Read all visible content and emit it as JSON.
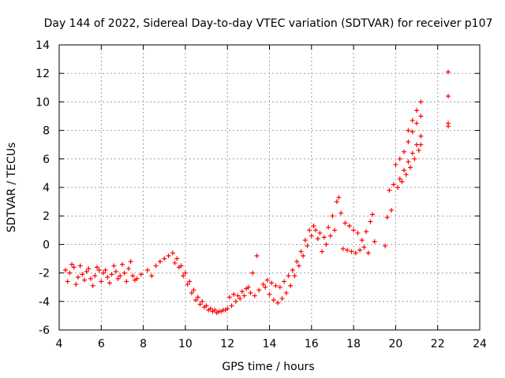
{
  "chart_data": {
    "type": "scatter",
    "title": "Day 144 of 2022, Sidereal Day-to-day VTEC variation (SDTVAR) for receiver p107",
    "xlabel": "GPS time / hours",
    "ylabel": "SDTVAR / TECUs",
    "xlim": [
      4,
      24
    ],
    "ylim": [
      -6,
      14
    ],
    "xticks": [
      4,
      6,
      8,
      10,
      12,
      14,
      16,
      18,
      20,
      22,
      24
    ],
    "yticks": [
      -6,
      -4,
      -2,
      0,
      2,
      4,
      6,
      8,
      10,
      12,
      14
    ],
    "grid": true,
    "marker": "plus",
    "color": "#ff0000",
    "series": [
      {
        "name": "p107",
        "points": [
          [
            4.3,
            -1.8
          ],
          [
            4.5,
            -2.0
          ],
          [
            4.7,
            -1.6
          ],
          [
            4.9,
            -2.3
          ],
          [
            5.1,
            -2.1
          ],
          [
            5.3,
            -1.9
          ],
          [
            5.5,
            -2.4
          ],
          [
            5.7,
            -2.2
          ],
          [
            5.9,
            -1.8
          ],
          [
            6.1,
            -2.0
          ],
          [
            6.3,
            -2.3
          ],
          [
            6.5,
            -2.1
          ],
          [
            6.7,
            -1.9
          ],
          [
            6.9,
            -2.2
          ],
          [
            7.1,
            -2.0
          ],
          [
            7.3,
            -1.7
          ],
          [
            7.5,
            -2.2
          ],
          [
            7.7,
            -2.4
          ],
          [
            7.9,
            -2.1
          ],
          [
            4.4,
            -2.6
          ],
          [
            4.8,
            -2.8
          ],
          [
            5.2,
            -2.5
          ],
          [
            5.6,
            -2.9
          ],
          [
            6.0,
            -2.6
          ],
          [
            6.4,
            -2.7
          ],
          [
            6.8,
            -2.4
          ],
          [
            7.2,
            -2.6
          ],
          [
            7.6,
            -2.5
          ],
          [
            4.6,
            -1.4
          ],
          [
            5.0,
            -1.5
          ],
          [
            5.4,
            -1.7
          ],
          [
            5.8,
            -1.6
          ],
          [
            6.2,
            -1.8
          ],
          [
            6.6,
            -1.5
          ],
          [
            7.0,
            -1.4
          ],
          [
            7.4,
            -1.2
          ],
          [
            8.2,
            -1.8
          ],
          [
            8.4,
            -2.2
          ],
          [
            8.6,
            -1.5
          ],
          [
            8.8,
            -1.2
          ],
          [
            9.0,
            -1.0
          ],
          [
            9.2,
            -0.8
          ],
          [
            9.4,
            -0.6
          ],
          [
            9.6,
            -1.0
          ],
          [
            9.8,
            -1.5
          ],
          [
            10.0,
            -2.0
          ],
          [
            10.2,
            -2.6
          ],
          [
            10.4,
            -3.2
          ],
          [
            10.6,
            -3.7
          ],
          [
            10.8,
            -4.0
          ],
          [
            11.0,
            -4.3
          ],
          [
            11.2,
            -4.5
          ],
          [
            11.4,
            -4.6
          ],
          [
            11.6,
            -4.7
          ],
          [
            11.8,
            -4.6
          ],
          [
            12.0,
            -4.5
          ],
          [
            12.2,
            -4.3
          ],
          [
            12.4,
            -4.0
          ],
          [
            12.6,
            -3.8
          ],
          [
            12.8,
            -3.6
          ],
          [
            13.0,
            -3.0
          ],
          [
            13.2,
            -2.0
          ],
          [
            13.4,
            -0.8
          ],
          [
            9.5,
            -1.3
          ],
          [
            9.7,
            -1.6
          ],
          [
            9.9,
            -2.2
          ],
          [
            10.1,
            -2.8
          ],
          [
            10.3,
            -3.4
          ],
          [
            10.5,
            -3.9
          ],
          [
            10.7,
            -4.2
          ],
          [
            10.9,
            -4.4
          ],
          [
            11.1,
            -4.6
          ],
          [
            11.3,
            -4.7
          ],
          [
            11.5,
            -4.8
          ],
          [
            11.7,
            -4.7
          ],
          [
            11.9,
            -4.6
          ],
          [
            12.1,
            -3.7
          ],
          [
            12.3,
            -3.5
          ],
          [
            12.5,
            -3.6
          ],
          [
            12.7,
            -3.3
          ],
          [
            12.9,
            -3.1
          ],
          [
            13.1,
            -3.4
          ],
          [
            13.3,
            -3.6
          ],
          [
            13.5,
            -3.2
          ],
          [
            13.7,
            -2.8
          ],
          [
            13.9,
            -2.5
          ],
          [
            14.1,
            -2.7
          ],
          [
            14.3,
            -2.9
          ],
          [
            14.5,
            -3.0
          ],
          [
            14.7,
            -2.6
          ],
          [
            14.9,
            -2.2
          ],
          [
            13.8,
            -3.0
          ],
          [
            14.0,
            -3.5
          ],
          [
            14.2,
            -3.9
          ],
          [
            14.4,
            -4.1
          ],
          [
            14.6,
            -3.8
          ],
          [
            14.8,
            -3.4
          ],
          [
            15.0,
            -2.9
          ],
          [
            15.2,
            -2.2
          ],
          [
            15.4,
            -1.5
          ],
          [
            15.6,
            -0.8
          ],
          [
            15.8,
            -0.1
          ],
          [
            16.0,
            0.6
          ],
          [
            16.2,
            1.0
          ],
          [
            16.4,
            0.8
          ],
          [
            15.1,
            -1.8
          ],
          [
            15.3,
            -1.2
          ],
          [
            15.5,
            -0.5
          ],
          [
            15.7,
            0.3
          ],
          [
            15.9,
            1.0
          ],
          [
            16.1,
            1.3
          ],
          [
            16.3,
            0.4
          ],
          [
            16.6,
            0.5
          ],
          [
            16.8,
            1.2
          ],
          [
            17.0,
            2.0
          ],
          [
            17.2,
            3.0
          ],
          [
            17.3,
            3.3
          ],
          [
            17.4,
            2.2
          ],
          [
            17.6,
            1.5
          ],
          [
            17.8,
            1.3
          ],
          [
            18.0,
            1.0
          ],
          [
            18.2,
            0.8
          ],
          [
            18.4,
            0.3
          ],
          [
            18.6,
            0.9
          ],
          [
            18.8,
            1.6
          ],
          [
            18.9,
            2.1
          ],
          [
            16.5,
            -0.5
          ],
          [
            16.7,
            0.0
          ],
          [
            16.9,
            0.6
          ],
          [
            17.1,
            1.0
          ],
          [
            17.5,
            -0.3
          ],
          [
            17.7,
            -0.4
          ],
          [
            17.9,
            -0.5
          ],
          [
            18.1,
            -0.6
          ],
          [
            18.3,
            -0.4
          ],
          [
            18.5,
            -0.2
          ],
          [
            18.7,
            -0.6
          ],
          [
            19.0,
            0.2
          ],
          [
            19.5,
            -0.1
          ],
          [
            19.6,
            1.9
          ],
          [
            19.8,
            2.4
          ],
          [
            19.7,
            3.8
          ],
          [
            19.9,
            4.2
          ],
          [
            20.0,
            5.6
          ],
          [
            20.2,
            6.0
          ],
          [
            20.1,
            4.0
          ],
          [
            20.3,
            4.4
          ],
          [
            20.5,
            4.9
          ],
          [
            20.7,
            5.4
          ],
          [
            20.9,
            6.0
          ],
          [
            21.1,
            6.6
          ],
          [
            21.2,
            7.0
          ],
          [
            20.2,
            4.6
          ],
          [
            20.4,
            5.2
          ],
          [
            20.6,
            5.8
          ],
          [
            20.8,
            6.4
          ],
          [
            21.0,
            7.0
          ],
          [
            21.2,
            7.6
          ],
          [
            20.4,
            6.5
          ],
          [
            20.6,
            7.2
          ],
          [
            20.8,
            7.9
          ],
          [
            21.0,
            8.5
          ],
          [
            21.2,
            9.0
          ],
          [
            20.6,
            8.0
          ],
          [
            20.8,
            8.7
          ],
          [
            21.0,
            9.4
          ],
          [
            21.2,
            10.0
          ],
          [
            22.5,
            12.1
          ],
          [
            22.5,
            10.4
          ],
          [
            22.5,
            8.5
          ],
          [
            22.5,
            8.3
          ]
        ]
      }
    ]
  }
}
